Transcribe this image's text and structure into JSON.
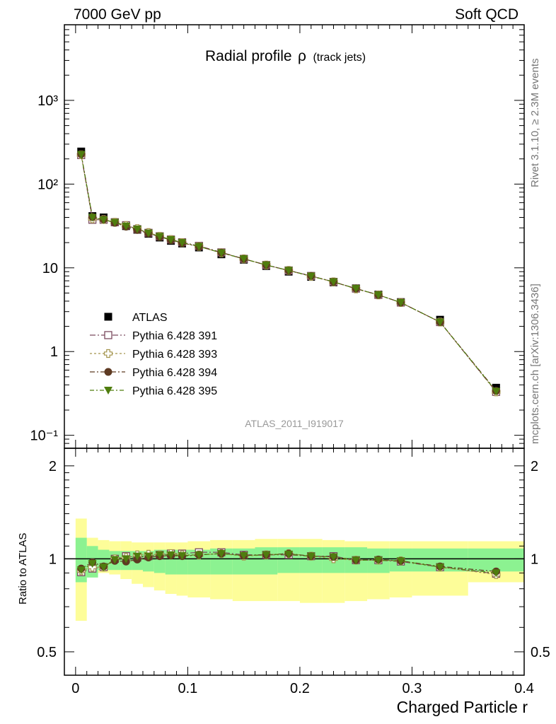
{
  "header": {
    "left": "7000 GeV pp",
    "right": "Soft QCD"
  },
  "side_labels": {
    "rivet": "Rivet 3.1.10, ≥ 2.3M events",
    "mcplots": "mcplots.cern.ch [arXiv:1306.3436]"
  },
  "analysis_id": "ATLAS_2011_I919017",
  "chart_data": [
    {
      "type": "line",
      "panel": "main",
      "title": "Radial profile",
      "title_symbol": "ρ",
      "title_suffix": "(track jets)",
      "ylabel": "",
      "xlabel": "",
      "xlim": [
        -0.01,
        0.4
      ],
      "ylim": [
        0.07,
        8000
      ],
      "yscale": "log",
      "ytick_labels": [
        "10⁻¹",
        "1",
        "10",
        "10²",
        "10³"
      ],
      "ytick_values": [
        0.1,
        1,
        10,
        100,
        1000
      ],
      "legend_position": "middle-left",
      "x": [
        0.005,
        0.015,
        0.025,
        0.035,
        0.045,
        0.055,
        0.065,
        0.075,
        0.085,
        0.095,
        0.11,
        0.13,
        0.15,
        0.17,
        0.19,
        0.21,
        0.23,
        0.25,
        0.27,
        0.29,
        0.325,
        0.375
      ],
      "series": [
        {
          "name": "ATLAS",
          "color": "#000000",
          "marker": "square-filled",
          "values": [
            245,
            41.5,
            40.0,
            35.0,
            31.5,
            28.5,
            25.5,
            23.0,
            21.0,
            19.5,
            17.5,
            14.5,
            12.5,
            10.5,
            9.0,
            7.8,
            6.7,
            5.7,
            4.8,
            3.9,
            2.4,
            0.37
          ]
        },
        {
          "name": "Pythia 6.428 391",
          "color": "#7b4a5e",
          "marker": "square-open",
          "values": [
            222,
            37.5,
            37.5,
            35.0,
            32.3,
            29.0,
            26.2,
            23.8,
            21.8,
            20.2,
            18.3,
            15.3,
            12.8,
            10.8,
            9.3,
            8.0,
            6.8,
            5.65,
            4.75,
            3.85,
            2.25,
            0.33
          ]
        },
        {
          "name": "Pythia 6.428 393",
          "color": "#a3944c",
          "marker": "cross-open",
          "values": [
            224,
            38.5,
            37.8,
            35.0,
            32.0,
            29.5,
            26.4,
            23.8,
            21.8,
            20.0,
            18.0,
            15.1,
            12.8,
            10.8,
            9.3,
            7.9,
            6.8,
            5.6,
            4.75,
            3.85,
            2.25,
            0.33
          ]
        },
        {
          "name": "Pythia 6.428 394",
          "color": "#5e3a22",
          "marker": "circle-filled",
          "values": [
            228,
            40.5,
            37.8,
            34.5,
            31.0,
            28.3,
            25.8,
            23.5,
            21.5,
            19.8,
            18.0,
            15.2,
            12.8,
            10.8,
            9.3,
            8.0,
            6.8,
            5.65,
            4.75,
            3.85,
            2.25,
            0.34
          ]
        },
        {
          "name": "Pythia 6.428 395",
          "color": "#4f7d0e",
          "marker": "triangle-down-filled",
          "values": [
            226,
            40.0,
            37.5,
            34.8,
            31.5,
            29.0,
            26.0,
            23.7,
            21.7,
            20.0,
            18.0,
            15.1,
            12.8,
            10.8,
            9.3,
            7.95,
            6.8,
            5.65,
            4.75,
            3.85,
            2.25,
            0.335
          ]
        }
      ]
    },
    {
      "type": "line",
      "panel": "ratio",
      "ylabel": "Ratio to ATLAS",
      "xlabel": "Charged Particle r",
      "xlim": [
        -0.01,
        0.4
      ],
      "ylim": [
        0.42,
        2.28
      ],
      "yscale": "log",
      "ytick_labels": [
        "0.5",
        "1",
        "2"
      ],
      "ytick_values": [
        0.5,
        1,
        2
      ],
      "xtick_labels": [
        "0",
        "0.1",
        "0.2",
        "0.3",
        "0.4"
      ],
      "xtick_values": [
        0,
        0.1,
        0.2,
        0.3,
        0.4
      ],
      "x_edges": [
        0.0,
        0.01,
        0.02,
        0.03,
        0.04,
        0.05,
        0.06,
        0.07,
        0.08,
        0.09,
        0.1,
        0.12,
        0.14,
        0.16,
        0.18,
        0.2,
        0.22,
        0.24,
        0.26,
        0.28,
        0.3,
        0.35,
        0.4
      ],
      "band_stat": {
        "color": "#8cf291",
        "low": [
          0.84,
          0.87,
          0.92,
          0.92,
          0.92,
          0.92,
          0.91,
          0.9,
          0.89,
          0.89,
          0.89,
          0.89,
          0.89,
          0.89,
          0.9,
          0.9,
          0.9,
          0.9,
          0.9,
          0.91,
          0.91,
          0.91
        ],
        "high": [
          1.17,
          1.1,
          1.07,
          1.06,
          1.06,
          1.06,
          1.06,
          1.07,
          1.07,
          1.07,
          1.07,
          1.08,
          1.08,
          1.09,
          1.09,
          1.09,
          1.09,
          1.09,
          1.08,
          1.08,
          1.08,
          1.08
        ]
      },
      "band_syst": {
        "color": "#fdfd99",
        "low": [
          0.63,
          0.88,
          0.9,
          0.89,
          0.86,
          0.83,
          0.81,
          0.79,
          0.77,
          0.76,
          0.75,
          0.74,
          0.73,
          0.73,
          0.73,
          0.72,
          0.72,
          0.73,
          0.74,
          0.75,
          0.76,
          0.84
        ],
        "high": [
          1.35,
          1.17,
          1.15,
          1.14,
          1.14,
          1.13,
          1.13,
          1.13,
          1.13,
          1.13,
          1.14,
          1.15,
          1.15,
          1.16,
          1.16,
          1.16,
          1.15,
          1.14,
          1.14,
          1.14,
          1.14,
          1.14
        ]
      },
      "x": [
        0.005,
        0.015,
        0.025,
        0.035,
        0.045,
        0.055,
        0.065,
        0.075,
        0.085,
        0.095,
        0.11,
        0.13,
        0.15,
        0.17,
        0.19,
        0.21,
        0.23,
        0.25,
        0.27,
        0.29,
        0.325,
        0.375
      ],
      "series": [
        {
          "name": "Pythia 6.428 391",
          "color": "#7b4a5e",
          "marker": "square-open",
          "values": [
            0.905,
            0.93,
            0.94,
            1.0,
            1.02,
            1.01,
            1.02,
            1.03,
            1.04,
            1.04,
            1.05,
            1.05,
            1.03,
            1.03,
            1.03,
            1.02,
            1.02,
            0.99,
            0.99,
            0.98,
            0.94,
            0.895
          ]
        },
        {
          "name": "Pythia 6.428 393",
          "color": "#a3944c",
          "marker": "cross-open",
          "values": [
            0.915,
            0.94,
            0.94,
            1.0,
            1.01,
            1.03,
            1.035,
            1.03,
            1.04,
            1.03,
            1.03,
            1.04,
            1.02,
            1.03,
            1.04,
            1.02,
            1.0,
            0.99,
            0.99,
            0.985,
            0.94,
            0.89
          ]
        },
        {
          "name": "Pythia 6.428 394",
          "color": "#5e3a22",
          "marker": "circle-filled",
          "values": [
            0.93,
            0.975,
            0.945,
            0.985,
            0.98,
            0.995,
            1.01,
            1.02,
            1.025,
            1.02,
            1.03,
            1.04,
            1.025,
            1.03,
            1.04,
            1.02,
            1.015,
            0.99,
            0.995,
            0.985,
            0.945,
            0.91
          ]
        },
        {
          "name": "Pythia 6.428 395",
          "color": "#4f7d0e",
          "marker": "triangle-down-filled",
          "values": [
            0.92,
            0.965,
            0.94,
            0.995,
            1.0,
            1.02,
            1.02,
            1.03,
            1.03,
            1.025,
            1.03,
            1.04,
            1.025,
            1.03,
            1.035,
            1.02,
            1.015,
            0.99,
            0.99,
            0.985,
            0.94,
            0.9
          ]
        }
      ]
    }
  ]
}
